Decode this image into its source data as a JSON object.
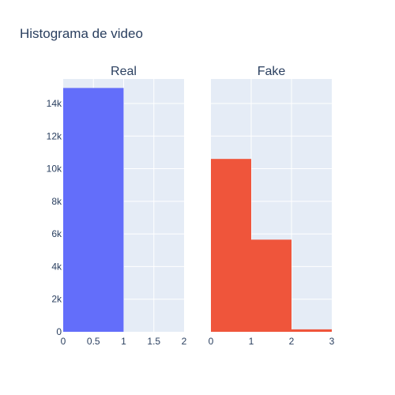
{
  "page_title": "Histograma de video",
  "colors": {
    "real": "#636efa",
    "fake": "#ef553b"
  },
  "chart_data": [
    {
      "type": "bar",
      "subtitle": "Real",
      "bins": [
        {
          "start": 0,
          "end": 1,
          "value": 14950
        }
      ],
      "xlim": [
        0,
        2
      ],
      "ylim": [
        0,
        15500
      ],
      "x_ticks": [
        0,
        0.5,
        1,
        1.5,
        2
      ],
      "x_tick_labels": [
        "0",
        "0.5",
        "1",
        "1.5",
        "2"
      ],
      "y_ticks": [
        0,
        2000,
        4000,
        6000,
        8000,
        10000,
        12000,
        14000
      ],
      "y_tick_labels": [
        "0",
        "2k",
        "4k",
        "6k",
        "8k",
        "10k",
        "12k",
        "14k"
      ]
    },
    {
      "type": "bar",
      "subtitle": "Fake",
      "bins": [
        {
          "start": 0,
          "end": 1,
          "value": 10600
        },
        {
          "start": 1,
          "end": 2,
          "value": 5650
        },
        {
          "start": 2,
          "end": 3,
          "value": 150
        }
      ],
      "xlim": [
        0,
        3
      ],
      "ylim": [
        0,
        15500
      ],
      "x_ticks": [
        0,
        1,
        2,
        3
      ],
      "x_tick_labels": [
        "0",
        "1",
        "2",
        "3"
      ],
      "y_ticks": [
        0,
        2000,
        4000,
        6000,
        8000,
        10000,
        12000,
        14000
      ]
    }
  ]
}
